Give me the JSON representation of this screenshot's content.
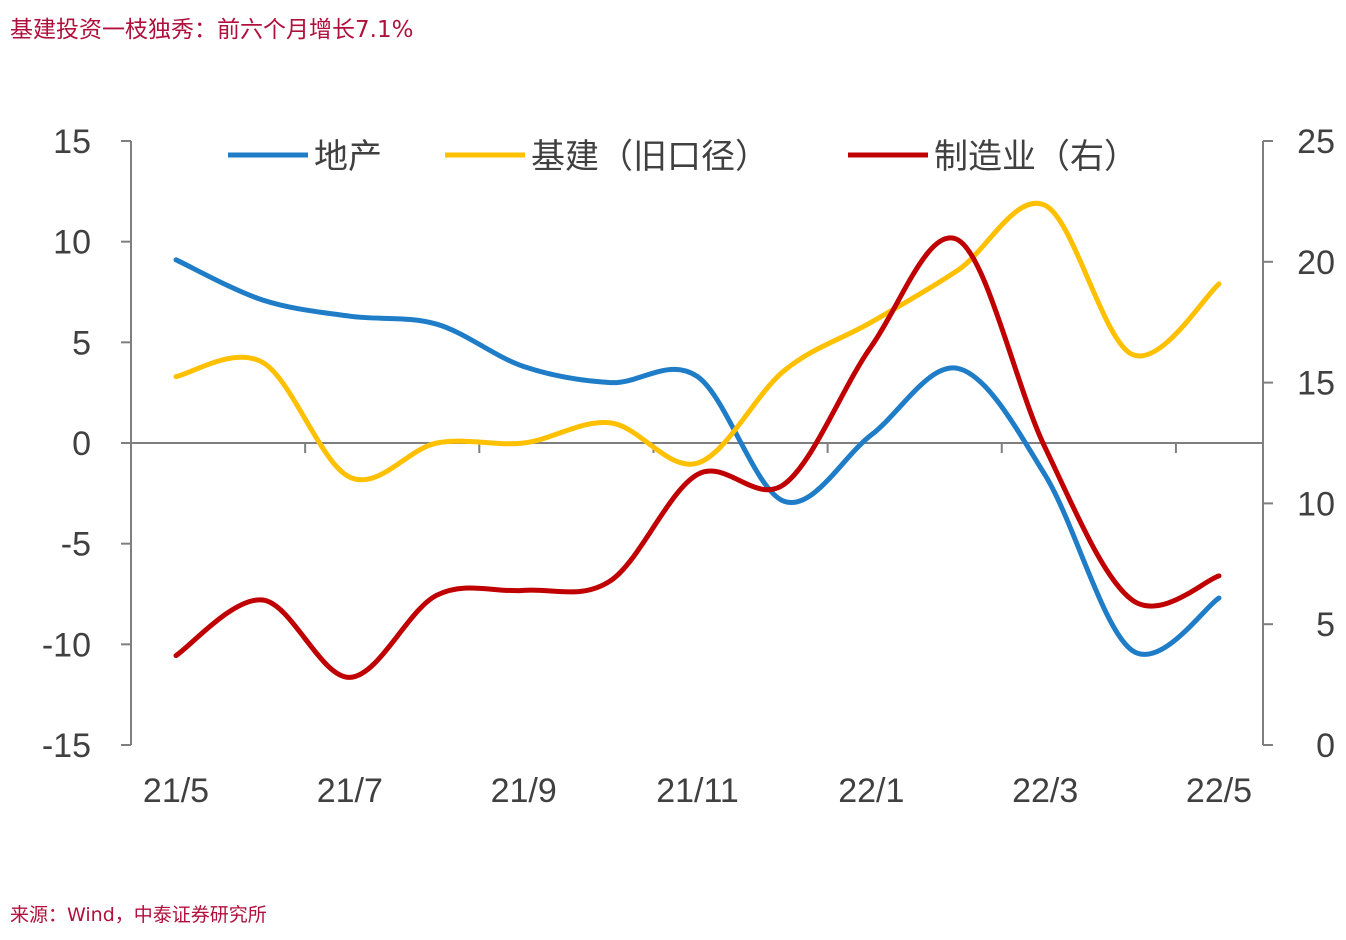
{
  "title": "基建投资一枝独秀：前六个月增长7.1%",
  "source": "来源：Wind，中泰证券研究所",
  "colors": {
    "title": "#b0113c",
    "axis": "#7f7f7f",
    "text": "#404040"
  },
  "chart_data": {
    "type": "line",
    "categories": [
      "21/5",
      "21/6",
      "21/7",
      "21/8",
      "21/9",
      "21/10",
      "21/11",
      "21/12",
      "22/1",
      "22/2",
      "22/3",
      "22/4",
      "22/5"
    ],
    "x_tick_labels": [
      "21/5",
      "21/7",
      "21/9",
      "21/11",
      "22/1",
      "22/3",
      "22/5"
    ],
    "y_left": {
      "min": -15,
      "max": 15,
      "ticks": [
        "15",
        "10",
        "5",
        "0",
        "-5",
        "-10",
        "-15"
      ]
    },
    "y_right": {
      "min": 0,
      "max": 25,
      "ticks": [
        "25",
        "20",
        "15",
        "10",
        "5",
        "0"
      ]
    },
    "series": [
      {
        "name": "地产",
        "axis": "left",
        "color": "#1f7dc8",
        "values": [
          9.1,
          7.1,
          6.3,
          5.9,
          3.8,
          3.0,
          3.3,
          -2.9,
          0.4,
          3.7,
          -1.6,
          -10.3,
          -7.7
        ]
      },
      {
        "name": "基建（旧口径）",
        "axis": "left",
        "color": "#ffc000",
        "values": [
          3.3,
          4.0,
          -1.7,
          0.0,
          0.0,
          1.0,
          -1.0,
          3.6,
          6.0,
          8.6,
          11.8,
          4.4,
          7.9
        ]
      },
      {
        "name": "制造业（右）",
        "axis": "right",
        "color": "#c00000",
        "values": [
          3.7,
          6.0,
          2.8,
          6.2,
          6.4,
          6.8,
          11.2,
          10.8,
          16.5,
          20.9,
          12.3,
          6.0,
          7.0
        ]
      }
    ]
  }
}
